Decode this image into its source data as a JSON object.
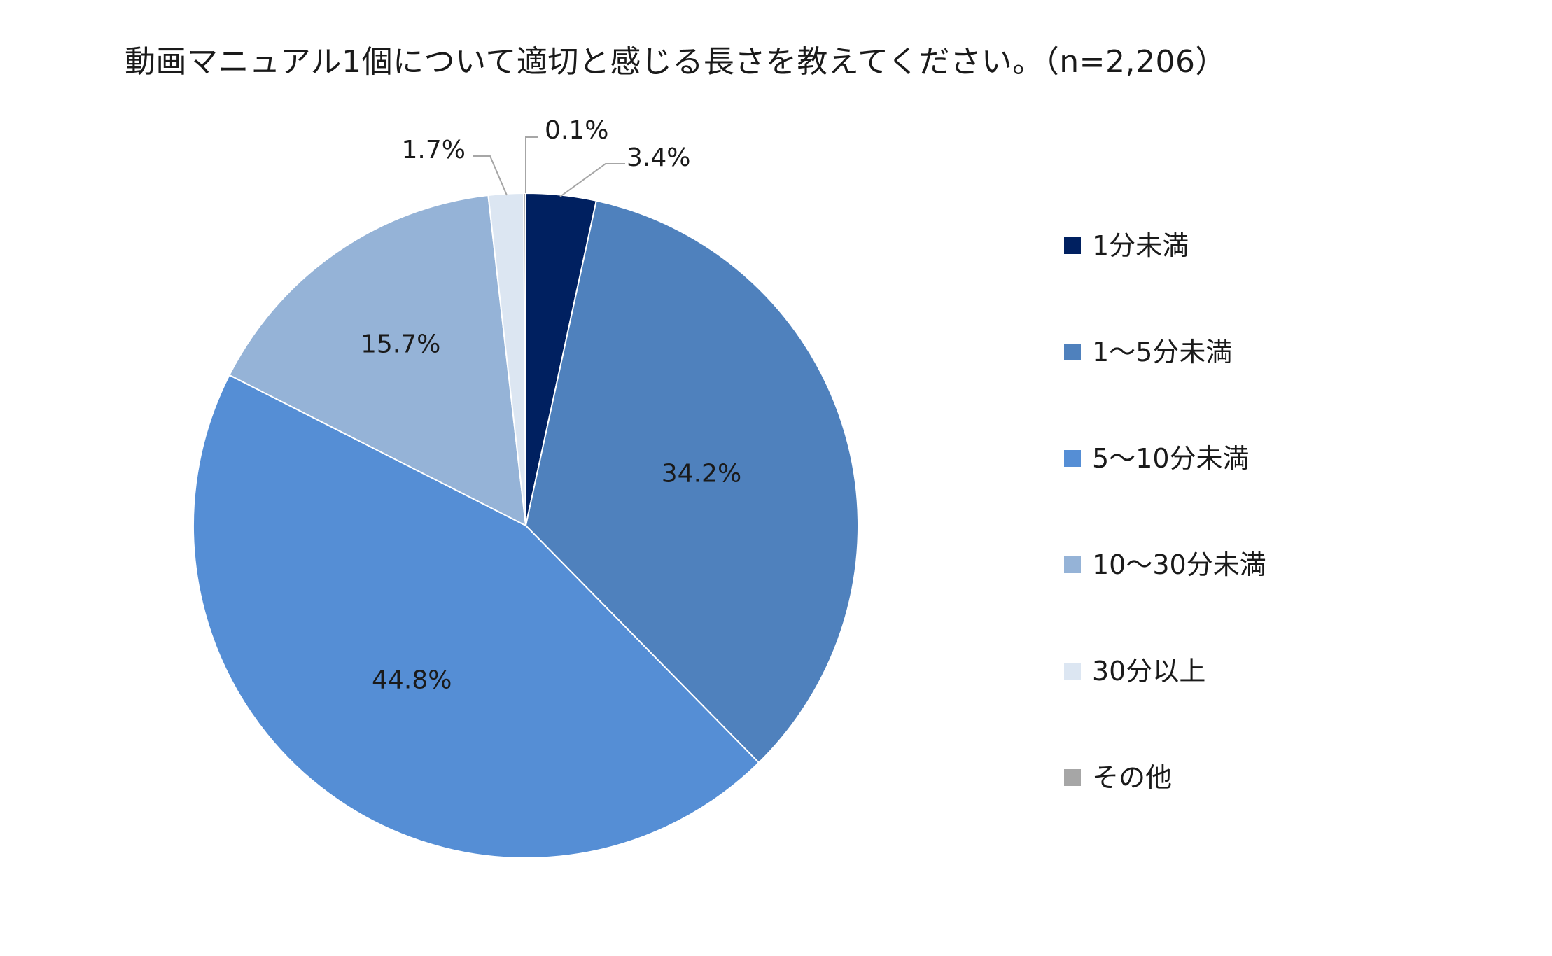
{
  "chart_data": {
    "type": "pie",
    "title": "動画マニュアル1個について適切と感じる長さを教えてください。（n=2,206）",
    "slices": [
      {
        "label": "1分未満",
        "value": 3.4,
        "value_label": "3.4%",
        "color": "#002060"
      },
      {
        "label": "1〜5分未満",
        "value": 34.2,
        "value_label": "34.2%",
        "color": "#4f81bd"
      },
      {
        "label": "5〜10分未満",
        "value": 44.8,
        "value_label": "44.8%",
        "color": "#558ed5"
      },
      {
        "label": "10〜30分未満",
        "value": 15.7,
        "value_label": "15.7%",
        "color": "#95b3d7"
      },
      {
        "label": "30分以上",
        "value": 1.7,
        "value_label": "1.7%",
        "color": "#dce6f2"
      },
      {
        "label": "その他",
        "value": 0.1,
        "value_label": "0.1%",
        "color": "#a6a6a6"
      }
    ],
    "start_angle": "12 o'clock",
    "direction": "clockwise",
    "legend_position": "right"
  }
}
